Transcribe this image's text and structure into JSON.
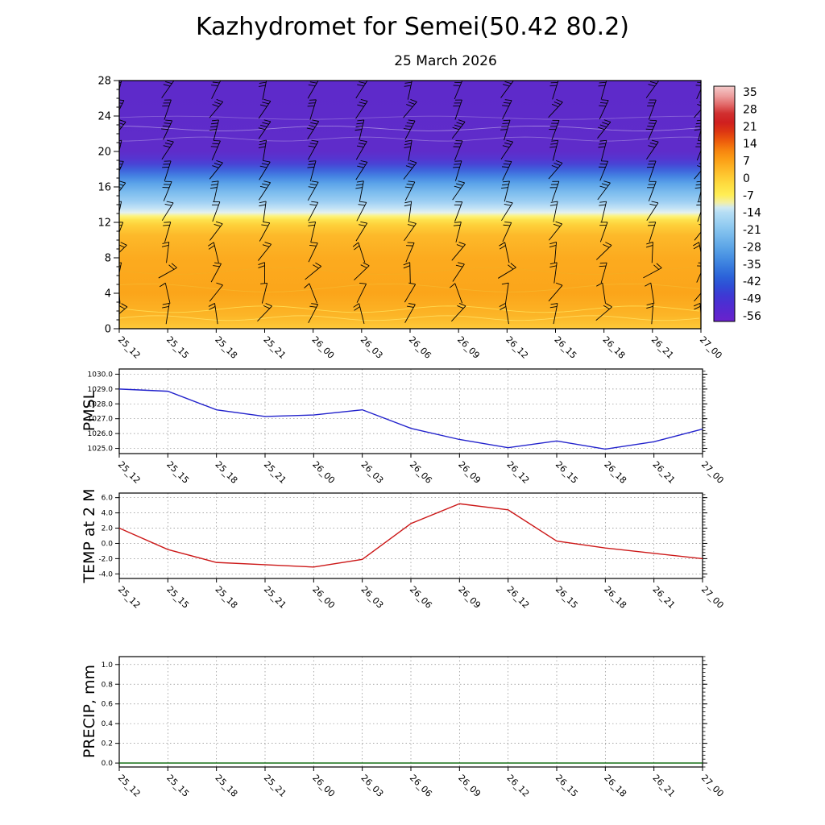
{
  "page": {
    "title": "Kazhydromet for Semei(50.42 80.2)",
    "subtitle": "25 March 2026"
  },
  "time_axis": {
    "categories": [
      "25_12",
      "25_15",
      "25_18",
      "25_21",
      "26_00",
      "26_03",
      "26_06",
      "26_09",
      "26_12",
      "26_15",
      "26_18",
      "26_21",
      "27_00"
    ]
  },
  "chart_data": [
    {
      "id": "profile",
      "type": "heatmap",
      "description": "Vertical temperature cross-section with wind barbs, height (km) vs time",
      "ylim": [
        0,
        28
      ],
      "y_ticks": [
        0,
        4,
        8,
        12,
        16,
        20,
        24,
        28
      ],
      "y_tick_labels": [
        "0",
        "4",
        "8",
        "12",
        "16",
        "20",
        "24",
        "28"
      ],
      "approx_temp_by_height": [
        {
          "h": 0,
          "t": 2
        },
        {
          "h": 6,
          "t": 5
        },
        {
          "h": 12,
          "t": -7
        },
        {
          "h": 14,
          "t": -16
        },
        {
          "h": 16,
          "t": -24
        },
        {
          "h": 17,
          "t": -30
        },
        {
          "h": 18,
          "t": -44
        },
        {
          "h": 19.5,
          "t": -52
        },
        {
          "h": 28,
          "t": -56
        }
      ],
      "gradient": [
        [
          0.0,
          "#5e2aca"
        ],
        [
          0.286,
          "#5f2cca"
        ],
        [
          0.314,
          "#5535d0"
        ],
        [
          0.339,
          "#4747d6"
        ],
        [
          0.361,
          "#3f63dc"
        ],
        [
          0.386,
          "#4584e2"
        ],
        [
          0.414,
          "#5ba3e9"
        ],
        [
          0.45,
          "#7cbcee"
        ],
        [
          0.486,
          "#9ccef3"
        ],
        [
          0.514,
          "#c2e2f6"
        ],
        [
          0.532,
          "#e4f1ef"
        ],
        [
          0.546,
          "#fdf37e"
        ],
        [
          0.561,
          "#fee34e"
        ],
        [
          0.582,
          "#fed03a"
        ],
        [
          0.625,
          "#fdb92a"
        ],
        [
          0.714,
          "#fcab1f"
        ],
        [
          0.857,
          "#fba51a"
        ],
        [
          0.946,
          "#fcb527"
        ],
        [
          1.0,
          "#fdc938"
        ]
      ],
      "contour_lines": [
        {
          "h": 22.6,
          "color": "#ffffff",
          "opacity": 0.4,
          "amp": 3.0,
          "wl": 260,
          "phase": 1.2
        },
        {
          "h": 21.4,
          "color": "#ffffff",
          "opacity": 0.3,
          "amp": 2.5,
          "wl": 200,
          "phase": 3.1
        },
        {
          "h": 23.8,
          "color": "#ffffff",
          "opacity": 0.25,
          "amp": 2.0,
          "wl": 320,
          "phase": 0.4
        },
        {
          "h": 2.2,
          "color": "#ffdf55",
          "opacity": 0.9,
          "amp": 4.0,
          "wl": 230,
          "phase": 2.0
        },
        {
          "h": 1.2,
          "color": "#ffe468",
          "opacity": 0.8,
          "amp": 3.0,
          "wl": 180,
          "phase": 4.2
        },
        {
          "h": 4.6,
          "color": "#f7b92e",
          "opacity": 0.8,
          "amp": 5.0,
          "wl": 300,
          "phase": 0.9
        },
        {
          "h": 6.5,
          "color": "#f5ae22",
          "opacity": 0.7,
          "amp": 4.0,
          "wl": 260,
          "phase": 2.6
        }
      ],
      "wind_barb_rows": [
        {
          "h": 27.0,
          "tilt": 24,
          "ticks": 3
        },
        {
          "h": 24.7,
          "tilt": 30,
          "ticks": 3
        },
        {
          "h": 22.4,
          "tilt": 26,
          "ticks": 4
        },
        {
          "h": 20.1,
          "tilt": 22,
          "ticks": 3
        },
        {
          "h": 17.8,
          "tilt": 28,
          "ticks": 3
        },
        {
          "h": 15.5,
          "tilt": 24,
          "ticks": 3
        },
        {
          "h": 13.2,
          "tilt": 20,
          "ticks": 2
        },
        {
          "h": 10.9,
          "tilt": 26,
          "ticks": 2
        },
        {
          "h": 8.6,
          "tilt": 14,
          "ticks": 2
        },
        {
          "h": 6.3,
          "tilt": 30,
          "ticks": 2
        },
        {
          "h": 4.0,
          "tilt": 10,
          "ticks": 1
        },
        {
          "h": 1.7,
          "tilt": 18,
          "ticks": 2
        }
      ],
      "colorbar": {
        "values": [
          "35",
          "28",
          "21",
          "14",
          "7",
          "0",
          "-7",
          "-14",
          "-21",
          "-28",
          "-35",
          "-42",
          "-49",
          "-56"
        ],
        "gradient": [
          [
            0.0,
            "#f5caca"
          ],
          [
            0.044,
            "#ec9a9a"
          ],
          [
            0.077,
            "#e26b6b"
          ],
          [
            0.115,
            "#d13030"
          ],
          [
            0.154,
            "#cf1f1f"
          ],
          [
            0.192,
            "#dd3612"
          ],
          [
            0.231,
            "#ec5a0c"
          ],
          [
            0.269,
            "#f6810e"
          ],
          [
            0.308,
            "#fb9d15"
          ],
          [
            0.346,
            "#fdb424"
          ],
          [
            0.385,
            "#fecb33"
          ],
          [
            0.423,
            "#fedf42"
          ],
          [
            0.462,
            "#ffee55"
          ],
          [
            0.495,
            "#f2efa5"
          ],
          [
            0.516,
            "#cfe9f2"
          ],
          [
            0.538,
            "#b4ddf4"
          ],
          [
            0.577,
            "#9bd0f2"
          ],
          [
            0.615,
            "#83c2ee"
          ],
          [
            0.654,
            "#6db2ea"
          ],
          [
            0.692,
            "#58a1e6"
          ],
          [
            0.731,
            "#468ee2"
          ],
          [
            0.769,
            "#3779dd"
          ],
          [
            0.808,
            "#2c63d9"
          ],
          [
            0.846,
            "#2e4fd6"
          ],
          [
            0.885,
            "#3c3bd4"
          ],
          [
            0.923,
            "#4c2ed2"
          ],
          [
            0.962,
            "#5b27cf"
          ],
          [
            1.0,
            "#6a22cc"
          ]
        ]
      }
    },
    {
      "id": "pmsl",
      "type": "line",
      "label": "PMSL",
      "color": "#2222cc",
      "ylim": [
        1024.65,
        1030.35
      ],
      "y_ticks": [
        1025,
        1026,
        1027,
        1028,
        1029,
        1030
      ],
      "y_tick_labels": [
        "1025.0",
        "1026.0",
        "1027.0",
        "1028.0",
        "1029.0",
        "1030.0"
      ],
      "values": [
        1029.0,
        1028.85,
        1027.6,
        1027.15,
        1027.25,
        1027.6,
        1026.35,
        1025.6,
        1025.05,
        1025.5,
        1024.95,
        1025.45,
        1026.3
      ]
    },
    {
      "id": "temp",
      "type": "line",
      "label": "TEMP at 2 M",
      "color": "#cc1818",
      "ylim": [
        -4.6,
        6.6
      ],
      "y_ticks": [
        -4,
        -2,
        0,
        2,
        4,
        6
      ],
      "y_tick_labels": [
        "-4.0",
        "-2.0",
        "0.0",
        "2.0",
        "4.0",
        "6.0"
      ],
      "values": [
        2.0,
        -0.8,
        -2.5,
        -2.8,
        -3.1,
        -2.1,
        2.6,
        5.2,
        4.4,
        0.3,
        -0.6,
        -1.3,
        -2.0
      ]
    },
    {
      "id": "precip",
      "type": "line",
      "label": "PRECIP, mm",
      "color": "#006400",
      "ylim": [
        -0.04,
        1.08
      ],
      "y_ticks": [
        0,
        0.2,
        0.4,
        0.6,
        0.8,
        1.0
      ],
      "y_tick_labels": [
        "0.0",
        "0.2",
        "0.4",
        "0.6",
        "0.8",
        "1.0"
      ],
      "values": [
        0,
        0,
        0,
        0,
        0,
        0,
        0,
        0,
        0,
        0,
        0,
        0,
        0
      ]
    }
  ]
}
